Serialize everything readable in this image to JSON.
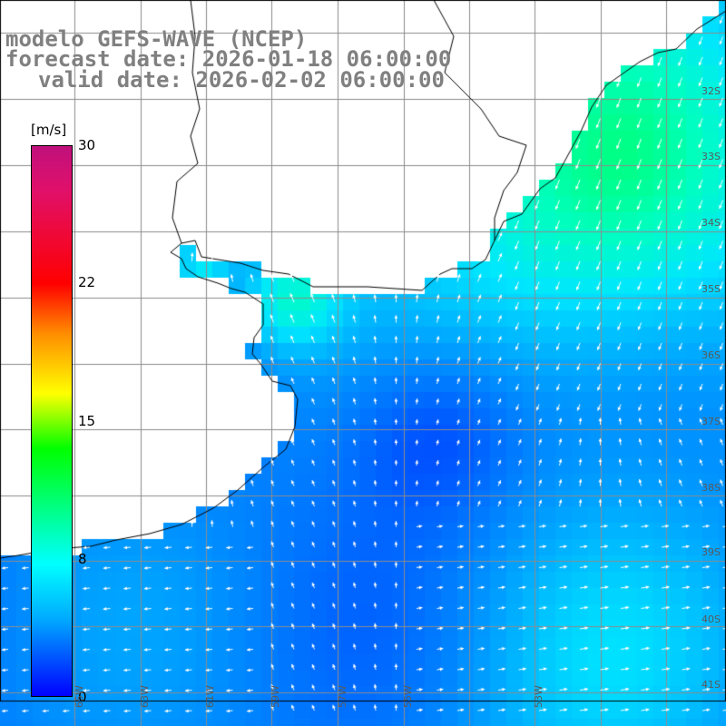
{
  "header": {
    "line1": "modelo GEFS-WAVE (NCEP)",
    "line2": "forecast date: 2026-01-18 06:00:00",
    "line3": "valid date: 2026-02-02 06:00:00"
  },
  "colorbar": {
    "unit": "[m/s]",
    "ticks": [
      "30",
      "22",
      "15",
      "8",
      "0"
    ],
    "colors": [
      "#0000ff",
      "#00aaff",
      "#00ffff",
      "#00ff00",
      "#ffff00",
      "#ff8c00",
      "#ff0000",
      "#c0107c"
    ]
  },
  "lat_labels": [
    "32S",
    "33S",
    "34S",
    "35S",
    "36S",
    "37S",
    "38S",
    "39S",
    "40S",
    "41S"
  ],
  "lon_labels": [
    "65W",
    "63W",
    "61W",
    "59W",
    "57W",
    "55W",
    "53W"
  ],
  "colors": {
    "land": "#ffffff",
    "grid": "#8c8c8c",
    "coast": "#000000",
    "arrow": "#ffffff"
  }
}
